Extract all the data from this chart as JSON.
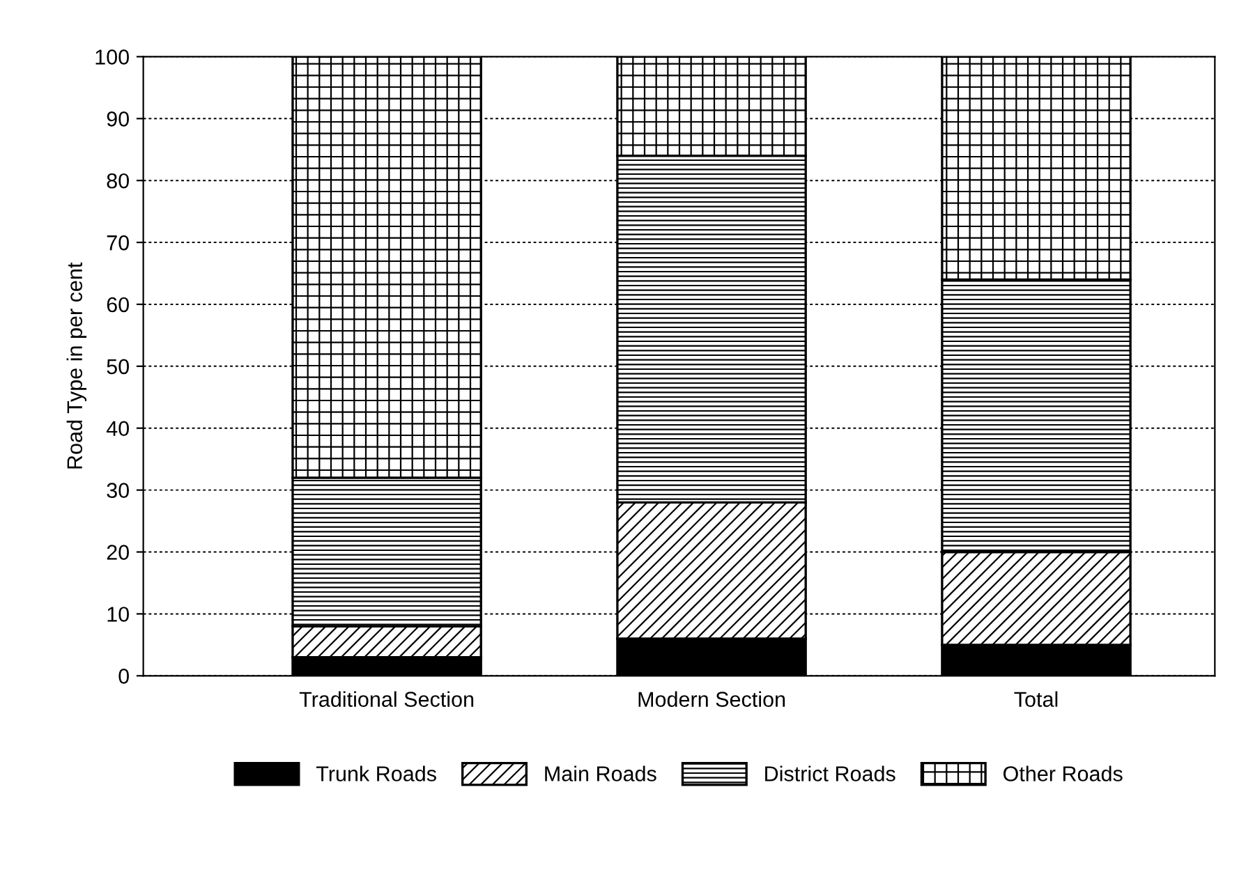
{
  "chart_data": {
    "type": "bar",
    "stacked": true,
    "ylabel": "Road Type in per cent",
    "categories": [
      "Traditional Section",
      "Modern Section",
      "Total"
    ],
    "series": [
      {
        "name": "Trunk Roads",
        "color": "#000000",
        "values": [
          3,
          6,
          5
        ]
      },
      {
        "name": "Main Roads",
        "color": "#000000",
        "values": [
          5,
          22,
          15
        ]
      },
      {
        "name": "District Roads",
        "color": "#000000",
        "values": [
          24,
          56,
          44
        ]
      },
      {
        "name": "Other Roads",
        "color": "#000000",
        "values": [
          68,
          16,
          36
        ]
      }
    ],
    "ylim": [
      0,
      100
    ],
    "yticks": [
      0,
      10,
      20,
      30,
      40,
      50,
      60,
      70,
      80,
      90,
      100
    ],
    "grid": "y",
    "legend": "bottom"
  }
}
